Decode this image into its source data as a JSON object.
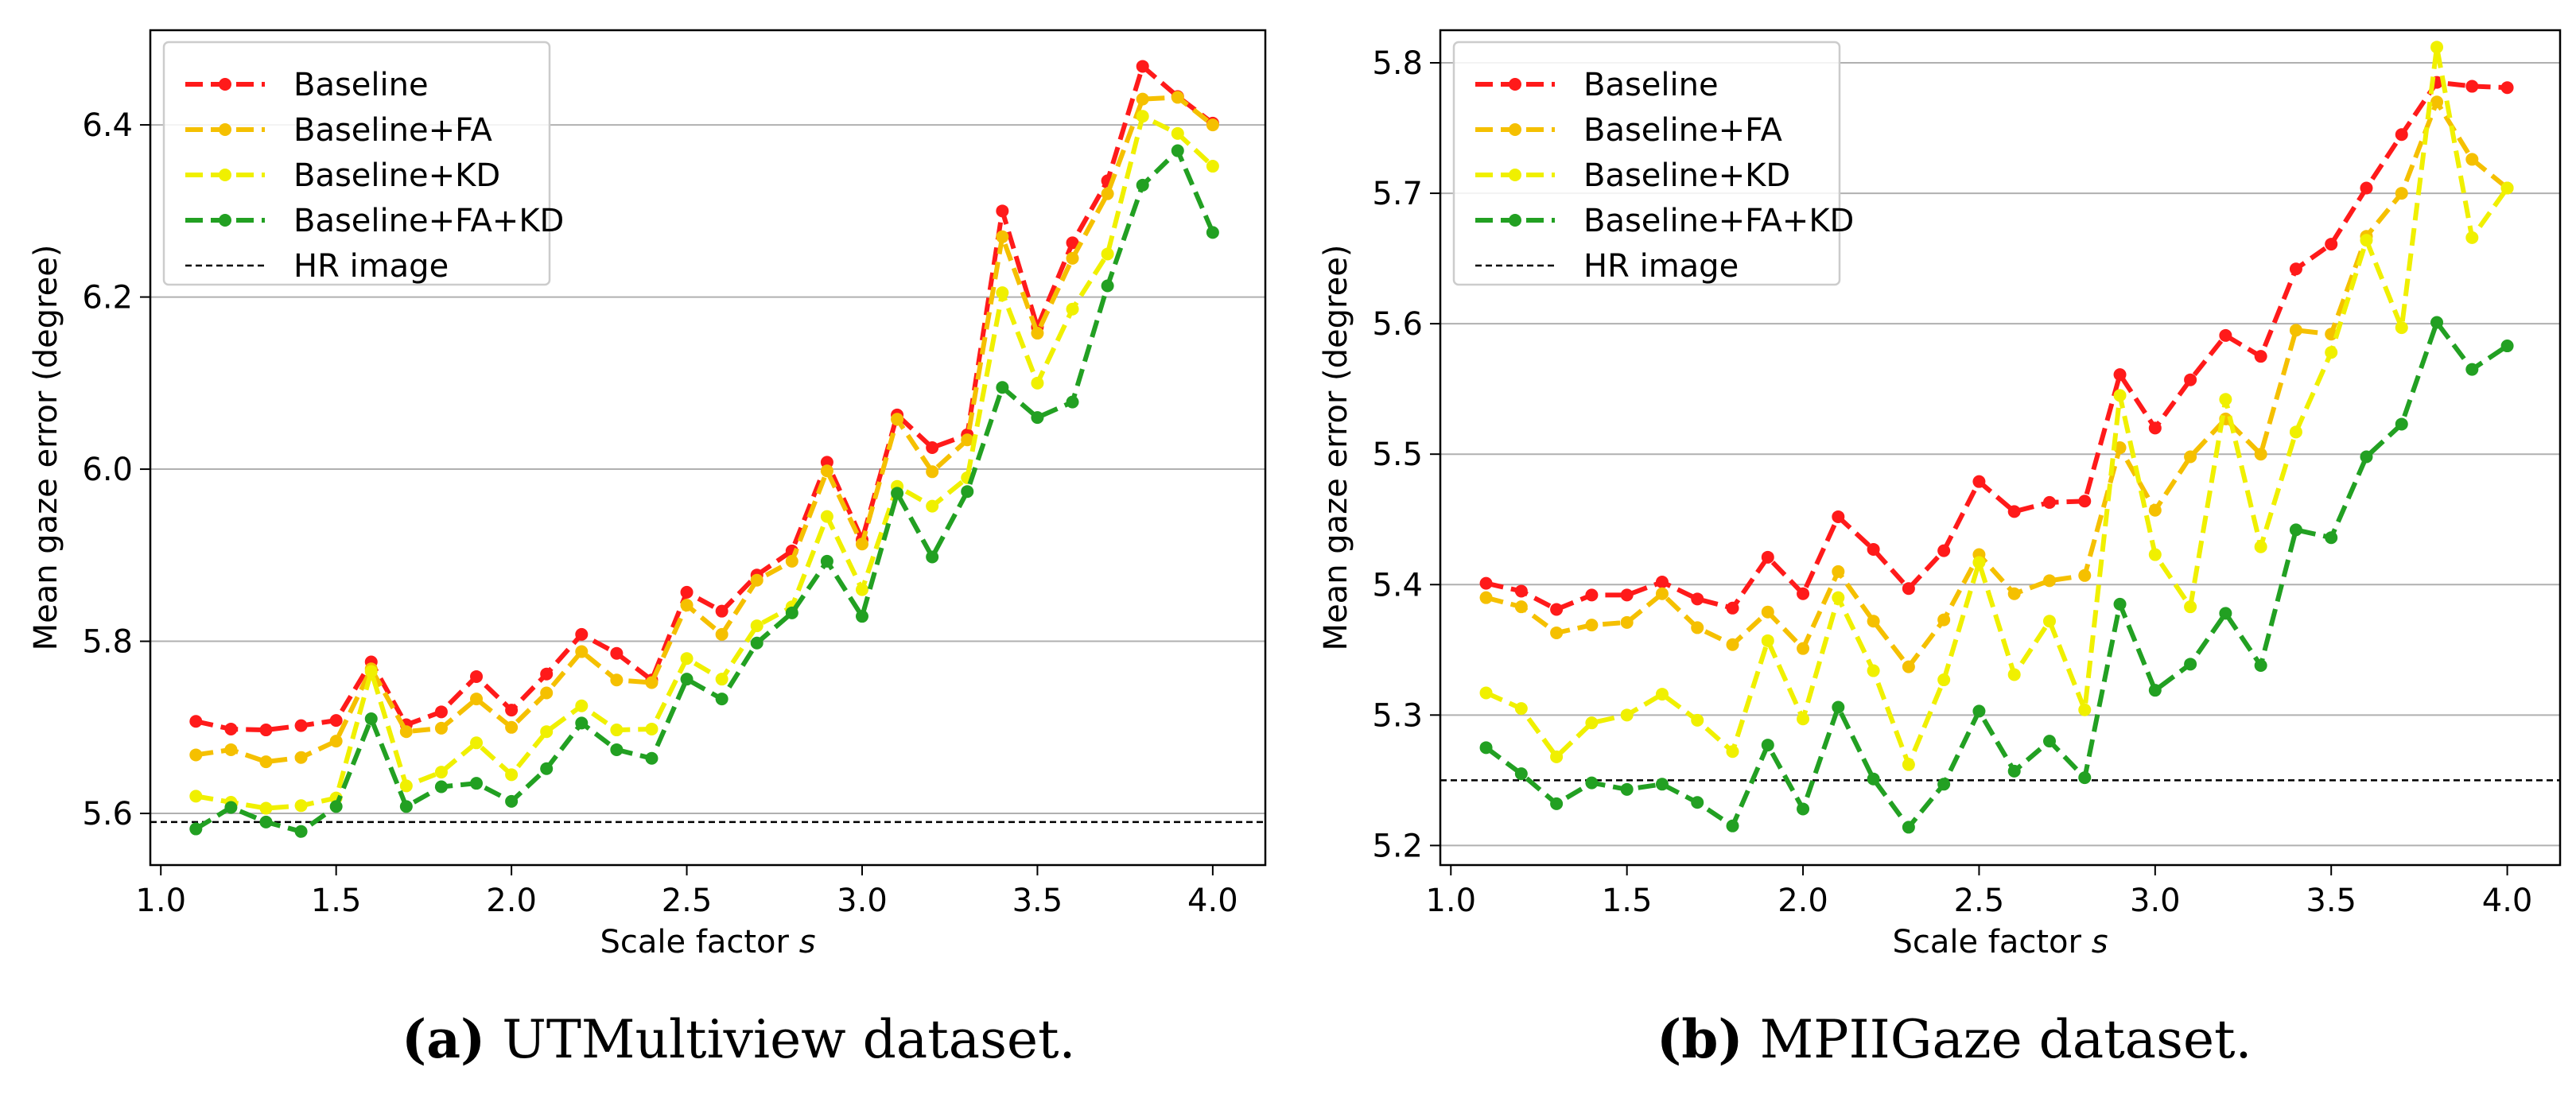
{
  "chart_data": [
    {
      "type": "line",
      "panel": "a",
      "xlabel_prefix": "Scale factor ",
      "xlabel_var": "s",
      "ylabel": "Mean gaze error (degree)",
      "xlim": [
        0.97,
        4.15
      ],
      "ylim": [
        5.54,
        6.51
      ],
      "xticks": [
        "1.0",
        "1.5",
        "2.0",
        "2.5",
        "3.0",
        "3.5",
        "4.0"
      ],
      "yticks": [
        "5.6",
        "5.8",
        "6.0",
        "6.2",
        "6.4"
      ],
      "grid": "horizontal",
      "legend_position": "top-left",
      "x": [
        1.1,
        1.2,
        1.3,
        1.4,
        1.5,
        1.6,
        1.7,
        1.8,
        1.9,
        2.0,
        2.1,
        2.2,
        2.3,
        2.4,
        2.5,
        2.6,
        2.7,
        2.8,
        2.9,
        3.0,
        3.1,
        3.2,
        3.3,
        3.4,
        3.5,
        3.6,
        3.7,
        3.8,
        3.9,
        4.0
      ],
      "series": [
        {
          "name": "Baseline",
          "color": "#ff1a1a",
          "values": [
            5.707,
            5.698,
            5.697,
            5.702,
            5.708,
            5.776,
            5.703,
            5.718,
            5.759,
            5.72,
            5.762,
            5.808,
            5.786,
            5.755,
            5.857,
            5.835,
            5.877,
            5.905,
            6.008,
            5.918,
            6.063,
            6.025,
            6.04,
            6.3,
            6.165,
            6.263,
            6.335,
            6.468,
            6.433,
            6.402
          ]
        },
        {
          "name": "Baseline+FA",
          "color": "#f5c000",
          "values": [
            5.668,
            5.674,
            5.66,
            5.665,
            5.684,
            5.768,
            5.695,
            5.699,
            5.733,
            5.7,
            5.74,
            5.788,
            5.755,
            5.752,
            5.842,
            5.808,
            5.871,
            5.893,
            5.998,
            5.913,
            6.058,
            5.997,
            6.034,
            6.27,
            6.158,
            6.245,
            6.32,
            6.43,
            6.432,
            6.4
          ]
        },
        {
          "name": "Baseline+KD",
          "color": "#f0f000",
          "values": [
            5.62,
            5.613,
            5.606,
            5.609,
            5.618,
            5.765,
            5.632,
            5.648,
            5.682,
            5.645,
            5.695,
            5.725,
            5.697,
            5.698,
            5.78,
            5.756,
            5.818,
            5.84,
            5.945,
            5.86,
            5.98,
            5.957,
            5.99,
            6.205,
            6.1,
            6.186,
            6.25,
            6.41,
            6.39,
            6.352
          ]
        },
        {
          "name": "Baseline+FA+KD",
          "color": "#22a022",
          "values": [
            5.582,
            5.607,
            5.59,
            5.579,
            5.608,
            5.71,
            5.608,
            5.631,
            5.635,
            5.614,
            5.652,
            5.705,
            5.674,
            5.664,
            5.756,
            5.733,
            5.798,
            5.833,
            5.893,
            5.829,
            5.972,
            5.898,
            5.974,
            6.095,
            6.06,
            6.078,
            6.213,
            6.33,
            6.37,
            6.275
          ]
        }
      ],
      "reference": {
        "name": "HR image",
        "value": 5.59
      }
    },
    {
      "type": "line",
      "panel": "b",
      "xlabel_prefix": "Scale factor ",
      "xlabel_var": "s",
      "ylabel": "Mean gaze error (degree)",
      "xlim": [
        0.97,
        4.15
      ],
      "ylim": [
        5.185,
        5.825
      ],
      "xticks": [
        "1.0",
        "1.5",
        "2.0",
        "2.5",
        "3.0",
        "3.5",
        "4.0"
      ],
      "yticks": [
        "5.2",
        "5.3",
        "5.4",
        "5.5",
        "5.6",
        "5.7",
        "5.8"
      ],
      "grid": "horizontal",
      "legend_position": "top-left",
      "x": [
        1.1,
        1.2,
        1.3,
        1.4,
        1.5,
        1.6,
        1.7,
        1.8,
        1.9,
        2.0,
        2.1,
        2.2,
        2.3,
        2.4,
        2.5,
        2.6,
        2.7,
        2.8,
        2.9,
        3.0,
        3.1,
        3.2,
        3.3,
        3.4,
        3.5,
        3.6,
        3.7,
        3.8,
        3.9,
        4.0
      ],
      "series": [
        {
          "name": "Baseline",
          "color": "#ff1a1a",
          "values": [
            5.401,
            5.395,
            5.381,
            5.392,
            5.392,
            5.402,
            5.389,
            5.382,
            5.421,
            5.393,
            5.452,
            5.427,
            5.397,
            5.426,
            5.479,
            5.456,
            5.463,
            5.464,
            5.561,
            5.52,
            5.557,
            5.591,
            5.575,
            5.642,
            5.661,
            5.704,
            5.745,
            5.785,
            5.782,
            5.781
          ]
        },
        {
          "name": "Baseline+FA",
          "color": "#f5c000",
          "values": [
            5.39,
            5.383,
            5.363,
            5.369,
            5.371,
            5.393,
            5.367,
            5.354,
            5.379,
            5.351,
            5.41,
            5.372,
            5.337,
            5.373,
            5.423,
            5.393,
            5.403,
            5.407,
            5.505,
            5.457,
            5.498,
            5.527,
            5.5,
            5.595,
            5.592,
            5.667,
            5.7,
            5.77,
            5.726,
            5.704
          ]
        },
        {
          "name": "Baseline+KD",
          "color": "#f0f000",
          "values": [
            5.317,
            5.305,
            5.268,
            5.294,
            5.3,
            5.316,
            5.296,
            5.272,
            5.357,
            5.297,
            5.39,
            5.334,
            5.262,
            5.327,
            5.417,
            5.331,
            5.372,
            5.304,
            5.545,
            5.423,
            5.383,
            5.542,
            5.429,
            5.517,
            5.578,
            5.664,
            5.597,
            5.812,
            5.666,
            5.704
          ]
        },
        {
          "name": "Baseline+FA+KD",
          "color": "#22a022",
          "values": [
            5.275,
            5.255,
            5.232,
            5.248,
            5.243,
            5.247,
            5.233,
            5.215,
            5.277,
            5.228,
            5.306,
            5.251,
            5.214,
            5.247,
            5.303,
            5.257,
            5.28,
            5.252,
            5.385,
            5.319,
            5.339,
            5.378,
            5.338,
            5.442,
            5.436,
            5.498,
            5.523,
            5.601,
            5.565,
            5.583
          ]
        }
      ],
      "reference": {
        "name": "HR image",
        "value": 5.25
      }
    }
  ],
  "captions": [
    {
      "label": "(a)",
      "text": " UTMultiview dataset."
    },
    {
      "label": "(b)",
      "text": " MPIIGaze dataset."
    }
  ]
}
